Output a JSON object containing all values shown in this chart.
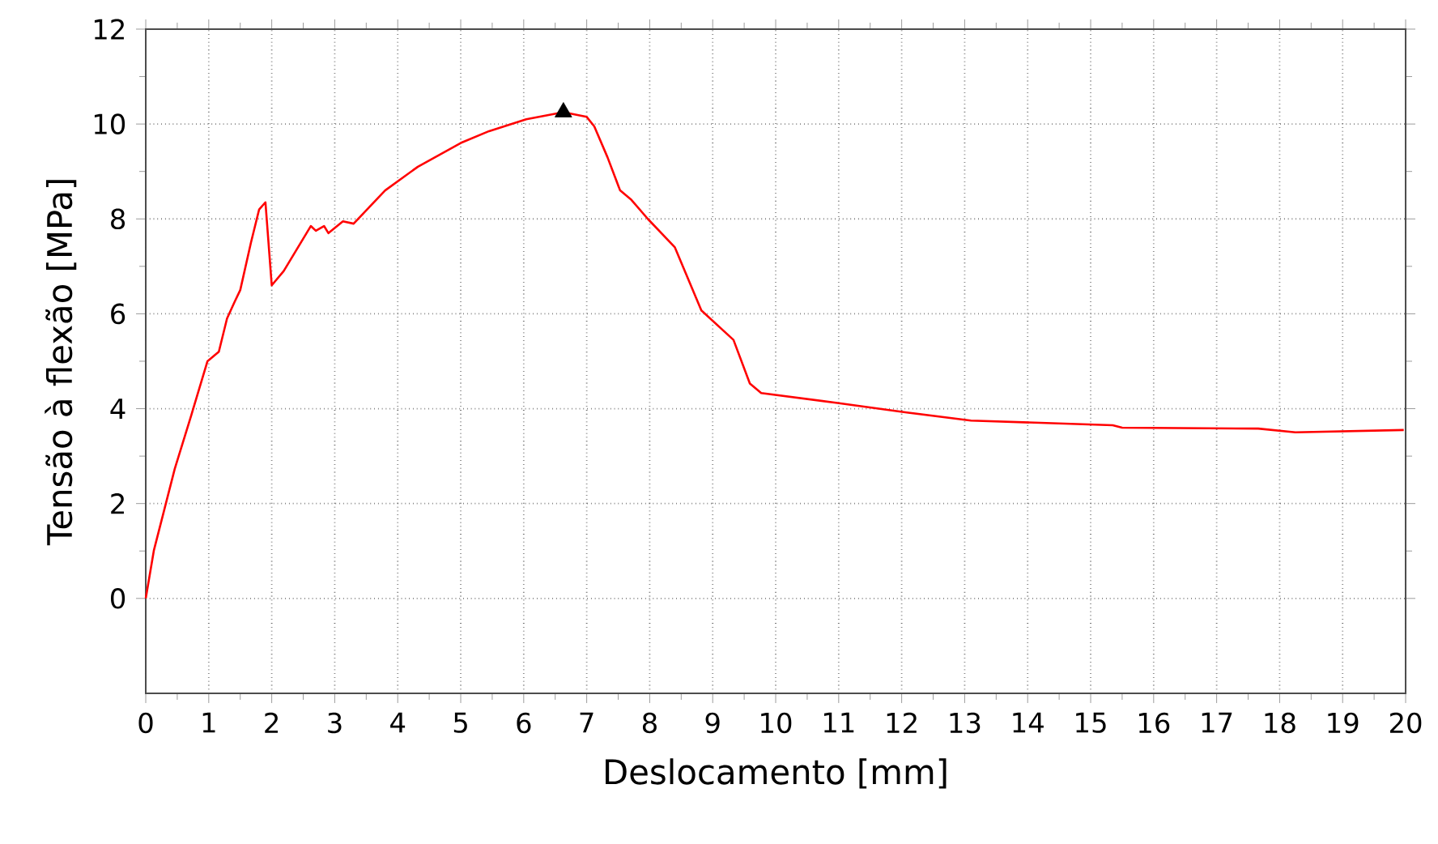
{
  "chart_data": {
    "type": "line",
    "xlabel": "Deslocamento [mm]",
    "ylabel": "Tensão à flexão [MPa]",
    "xlim": [
      0,
      20
    ],
    "ylim": [
      -2,
      12
    ],
    "xticks": [
      0,
      1,
      2,
      3,
      4,
      5,
      6,
      7,
      8,
      9,
      10,
      11,
      12,
      13,
      14,
      15,
      16,
      17,
      18,
      19,
      20
    ],
    "yticks": [
      0,
      2,
      4,
      6,
      8,
      10,
      12
    ],
    "grid": true,
    "series": [
      {
        "color": "#ff0000",
        "x": [
          0,
          0.13,
          0.46,
          0.72,
          0.98,
          1.16,
          1.29,
          1.41,
          1.5,
          1.67,
          1.8,
          1.9,
          2.0,
          2.19,
          2.62,
          2.7,
          2.83,
          2.9,
          3.13,
          3.3,
          3.8,
          4.32,
          5.0,
          5.45,
          6.04,
          6.63,
          7.0,
          7.12,
          7.33,
          7.53,
          7.71,
          7.97,
          8.4,
          8.82,
          9.33,
          9.59,
          9.77,
          10.98,
          12.08,
          13.1,
          15.35,
          15.5,
          17.66,
          18.25,
          19.97
        ],
        "values": [
          0,
          1.02,
          2.73,
          3.85,
          5.0,
          5.2,
          5.9,
          6.25,
          6.5,
          7.5,
          8.2,
          8.35,
          6.6,
          6.9,
          7.85,
          7.75,
          7.85,
          7.7,
          7.95,
          7.9,
          8.6,
          9.1,
          9.6,
          9.85,
          10.1,
          10.25,
          10.15,
          9.95,
          9.3,
          8.6,
          8.4,
          8.0,
          7.4,
          6.07,
          5.45,
          4.53,
          4.33,
          4.12,
          3.92,
          3.75,
          3.65,
          3.6,
          3.58,
          3.5,
          3.55
        ]
      },
      {
        "type": "scatter",
        "color": "#000000",
        "marker": "triangle",
        "x": [
          6.63
        ],
        "values": [
          10.25
        ]
      }
    ]
  }
}
